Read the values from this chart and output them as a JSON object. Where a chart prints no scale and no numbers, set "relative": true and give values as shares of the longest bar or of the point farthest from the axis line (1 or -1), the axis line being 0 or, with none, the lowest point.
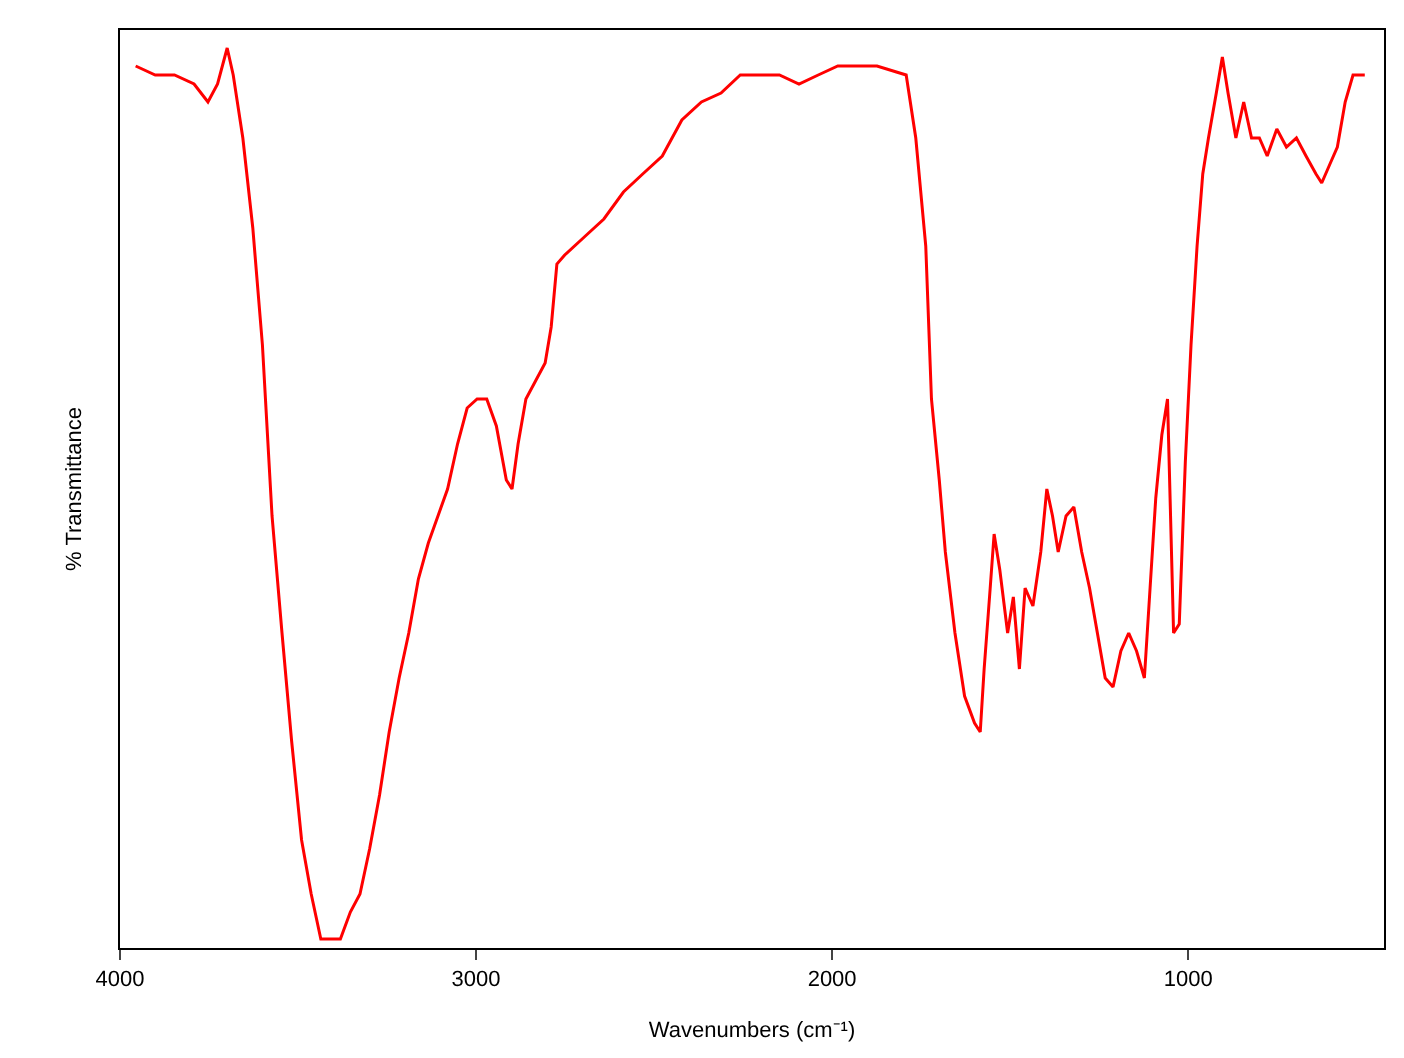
{
  "chart_data": {
    "type": "line",
    "relative": true,
    "xlabel": "Wavenumbers (cm⁻¹)",
    "ylabel": "% Transmittance",
    "xlim": [
      4000,
      450
    ],
    "xticks": [
      4000,
      3000,
      2000,
      1000
    ],
    "marker": "none",
    "line_style": "solid",
    "x": [
      3956,
      3901,
      3847,
      3792,
      3753,
      3726,
      3699,
      3682,
      3655,
      3627,
      3600,
      3573,
      3545,
      3518,
      3490,
      3463,
      3436,
      3408,
      3381,
      3353,
      3326,
      3299,
      3271,
      3244,
      3216,
      3189,
      3162,
      3134,
      3107,
      3080,
      3052,
      3025,
      2997,
      2970,
      2943,
      2915,
      2899,
      2882,
      2860,
      2833,
      2806,
      2789,
      2773,
      2751,
      2696,
      2641,
      2586,
      2532,
      2477,
      2422,
      2367,
      2312,
      2258,
      2148,
      2093,
      2039,
      1984,
      1874,
      1792,
      1765,
      1737,
      1721,
      1699,
      1682,
      1655,
      1628,
      1600,
      1584,
      1573,
      1556,
      1545,
      1529,
      1507,
      1491,
      1474,
      1458,
      1436,
      1414,
      1397,
      1381,
      1365,
      1343,
      1321,
      1299,
      1277,
      1255,
      1233,
      1211,
      1189,
      1167,
      1145,
      1123,
      1107,
      1091,
      1074,
      1058,
      1041,
      1025,
      1008,
      992,
      975,
      959,
      943,
      921,
      904,
      888,
      866,
      844,
      822,
      800,
      778,
      751,
      724,
      696,
      669,
      641,
      625,
      603,
      581,
      559,
      537,
      504
    ],
    "series": [
      {
        "color": "#ff0000",
        "values": [
          0.98,
          0.97,
          0.97,
          0.96,
          0.94,
          0.96,
          1.0,
          0.97,
          0.9,
          0.8,
          0.67,
          0.48,
          0.35,
          0.23,
          0.12,
          0.06,
          0.01,
          0.01,
          0.01,
          0.04,
          0.06,
          0.11,
          0.17,
          0.24,
          0.3,
          0.35,
          0.41,
          0.45,
          0.48,
          0.51,
          0.56,
          0.6,
          0.61,
          0.61,
          0.58,
          0.52,
          0.51,
          0.56,
          0.61,
          0.63,
          0.65,
          0.69,
          0.76,
          0.77,
          0.79,
          0.81,
          0.84,
          0.86,
          0.88,
          0.92,
          0.94,
          0.95,
          0.97,
          0.97,
          0.96,
          0.97,
          0.98,
          0.98,
          0.97,
          0.9,
          0.78,
          0.61,
          0.52,
          0.44,
          0.35,
          0.28,
          0.25,
          0.24,
          0.31,
          0.4,
          0.46,
          0.42,
          0.35,
          0.39,
          0.31,
          0.4,
          0.38,
          0.44,
          0.51,
          0.48,
          0.44,
          0.48,
          0.49,
          0.44,
          0.4,
          0.35,
          0.3,
          0.29,
          0.33,
          0.35,
          0.33,
          0.3,
          0.4,
          0.5,
          0.57,
          0.61,
          0.35,
          0.36,
          0.54,
          0.67,
          0.78,
          0.86,
          0.9,
          0.95,
          0.99,
          0.95,
          0.9,
          0.94,
          0.9,
          0.9,
          0.88,
          0.91,
          0.89,
          0.9,
          0.88,
          0.86,
          0.85,
          0.87,
          0.89,
          0.94,
          0.97,
          0.97
        ]
      }
    ]
  }
}
